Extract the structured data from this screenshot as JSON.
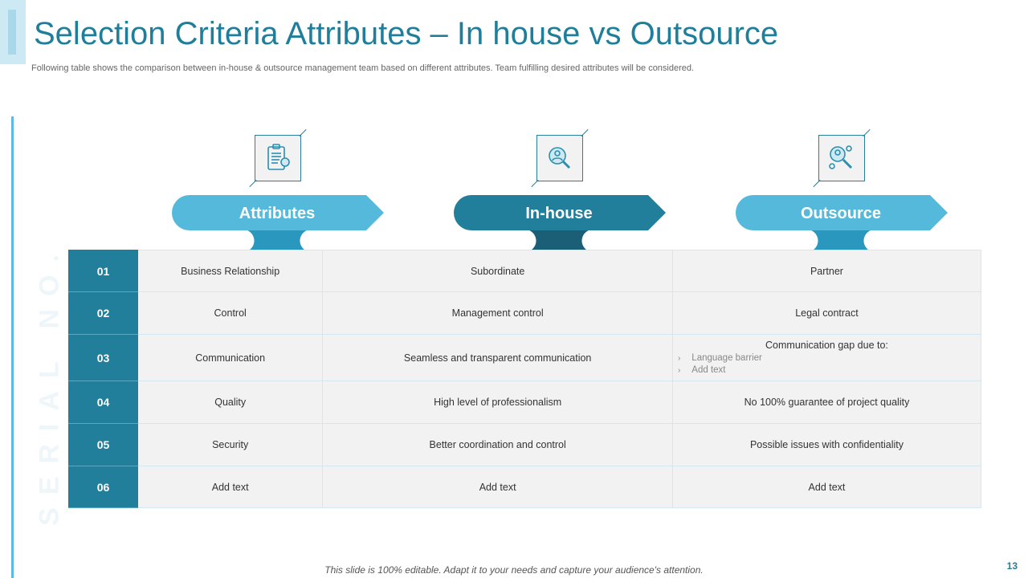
{
  "title": "Selection Criteria Attributes – In house vs Outsource",
  "subtitle": "Following table shows the comparison between in-house & outsource management team based on different attributes. Team fulfilling desired attributes will be considered.",
  "serial_label": "SERIAL NO.",
  "colors": {
    "accent": "#1f7f9a",
    "light": "#55b9db",
    "dark": "#217f9b"
  },
  "headers": [
    {
      "label": "Attributes",
      "icon": "clipboard-gear-icon",
      "color": "#55b9db",
      "stem": "#2a97bf"
    },
    {
      "label": "In-house",
      "icon": "person-search-icon",
      "color": "#217f9b",
      "stem": "#1a5f75"
    },
    {
      "label": "Outsource",
      "icon": "network-search-icon",
      "color": "#55b9db",
      "stem": "#2a97bf"
    }
  ],
  "rows": [
    {
      "num": "01",
      "attribute": "Business Relationship",
      "inhouse": "Subordinate",
      "outsource": "Partner"
    },
    {
      "num": "02",
      "attribute": "Control",
      "inhouse": "Management  control",
      "outsource": "Legal contract"
    },
    {
      "num": "03",
      "attribute": "Communication",
      "inhouse": "Seamless and transparent communication",
      "outsource": "Communication  gap due to:",
      "outsource_bullets": [
        "Language barrier",
        "Add text"
      ]
    },
    {
      "num": "04",
      "attribute": "Quality",
      "inhouse": "High level of professionalism",
      "outsource": "No 100% guarantee  of project quality"
    },
    {
      "num": "05",
      "attribute": "Security",
      "inhouse": "Better coordination  and control",
      "outsource": "Possible issues with confidentiality"
    },
    {
      "num": "06",
      "attribute": "Add text",
      "inhouse": "Add text",
      "outsource": "Add text"
    }
  ],
  "footer": "This slide is 100% editable. Adapt it to your needs and capture your audience's attention.",
  "page_number": "13"
}
